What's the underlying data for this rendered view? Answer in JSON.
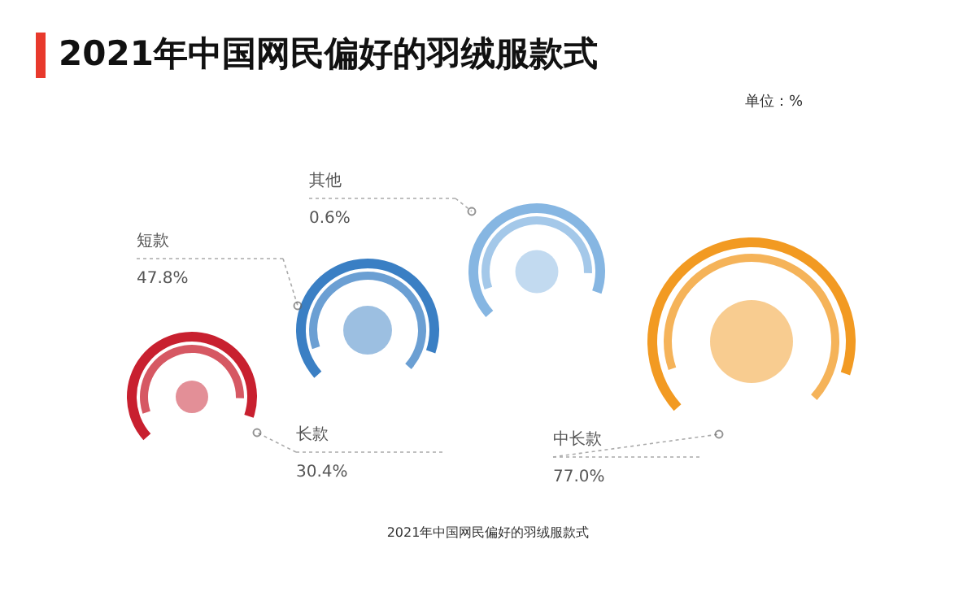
{
  "chart_data": {
    "type": "other",
    "title": "2021年中国网民偏好的羽绒服款式",
    "categories": [
      "长款",
      "短款",
      "其他",
      "中长款"
    ],
    "values": [
      30.4,
      47.8,
      0.6,
      77.0
    ],
    "value_labels": [
      "30.4%",
      "47.8%",
      "0.6%",
      "77.0%"
    ],
    "colors": [
      "#c8202f",
      "#3a7fc4",
      "#86b6e2",
      "#f29a22"
    ],
    "annotations": [
      "单位：%",
      "2021年中国网民偏好的羽绒服款式"
    ]
  }
}
